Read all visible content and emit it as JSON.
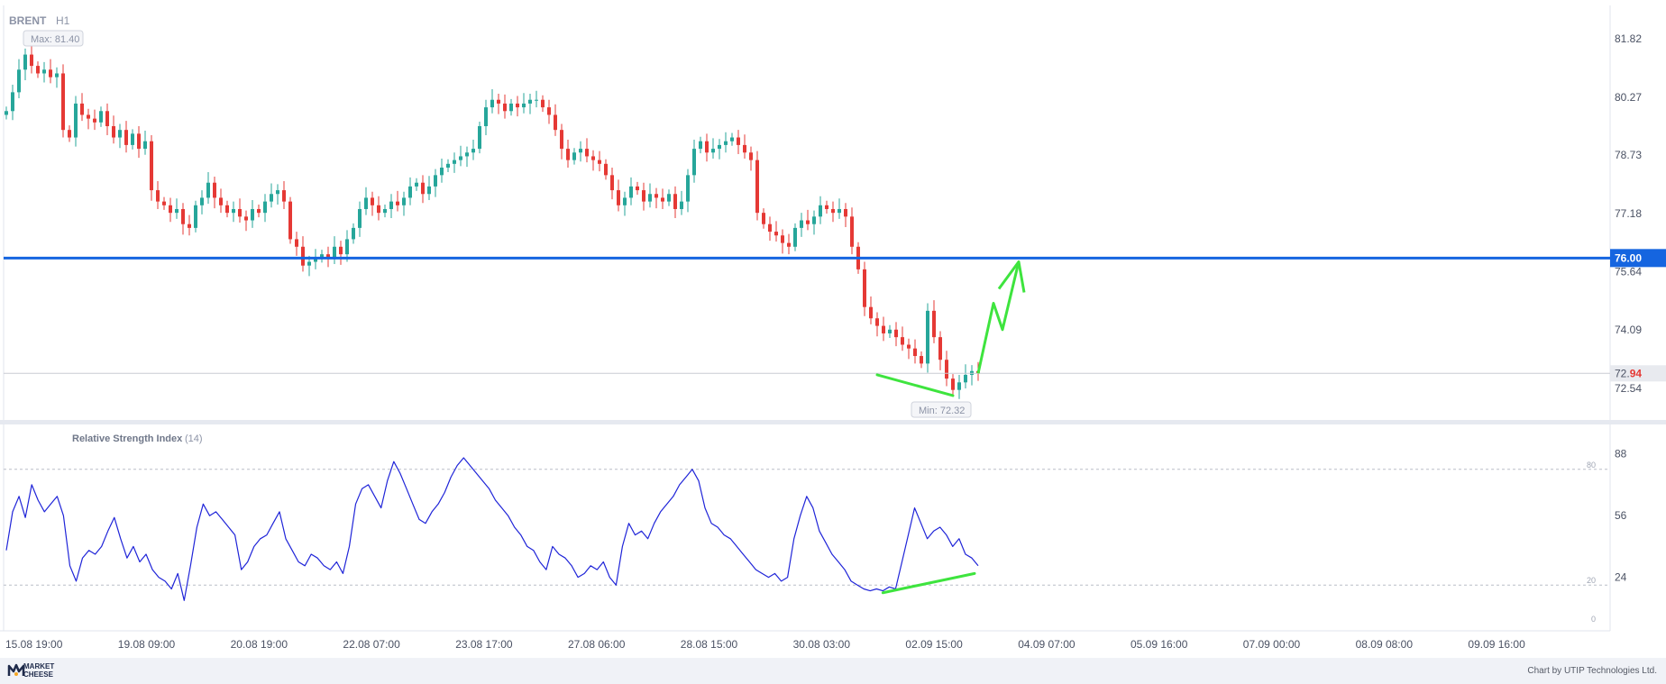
{
  "header": {
    "symbol": "BRENT",
    "timeframe": "H1"
  },
  "badges": {
    "max": "Max: 81.40",
    "min": "Min: 72.32"
  },
  "rsi": {
    "title": "Relative Strength Index",
    "period": "(14)"
  },
  "footer": {
    "brand_line1": "MARKET",
    "brand_line2": "CHEESE",
    "credit": "Chart by UTIP Technologies Ltd."
  },
  "colors": {
    "up": "#26a69a",
    "down": "#e53935",
    "level": "#1565e0",
    "rsi": "#1f24d8",
    "arrow": "#3ee43e"
  },
  "chart_data": [
    {
      "type": "candlestick",
      "title": "BRENT H1",
      "y_ticks": [
        "81.82",
        "80.27",
        "78.73",
        "77.18",
        "75.64",
        "74.09",
        "72.54"
      ],
      "ylim": [
        71.8,
        82.6
      ],
      "x_ticks": [
        "15.08 19:00",
        "19.08 09:00",
        "20.08 19:00",
        "22.08 07:00",
        "23.08 17:00",
        "27.08 06:00",
        "28.08 15:00",
        "30.08 03:00",
        "02.09 15:00",
        "04.09 07:00",
        "05.09 16:00",
        "07.09 00:00",
        "08.09 08:00",
        "09.09 16:00"
      ],
      "horizontal_level": {
        "value": 76.0,
        "label": "76.00"
      },
      "last_price": {
        "value": 72.94,
        "label_main": "72.",
        "label_tail": "94"
      },
      "max": 81.4,
      "min": 72.32,
      "close_path": [
        79.9,
        80.4,
        81.0,
        81.4,
        81.1,
        80.9,
        81.0,
        80.8,
        80.9,
        79.4,
        79.2,
        80.1,
        79.8,
        79.7,
        79.6,
        79.9,
        79.5,
        79.2,
        79.4,
        79.0,
        79.3,
        78.9,
        79.1,
        77.8,
        77.5,
        77.4,
        77.2,
        77.3,
        76.9,
        76.8,
        77.4,
        77.6,
        78.0,
        77.6,
        77.4,
        77.2,
        77.3,
        77.1,
        77.0,
        77.3,
        77.2,
        77.5,
        77.7,
        77.8,
        77.5,
        76.5,
        76.3,
        75.8,
        75.9,
        76.0,
        76.1,
        76.0,
        76.3,
        76.1,
        76.5,
        76.8,
        77.3,
        77.6,
        77.4,
        77.2,
        77.3,
        77.5,
        77.4,
        77.6,
        77.9,
        78.0,
        77.7,
        77.9,
        78.2,
        78.4,
        78.5,
        78.6,
        78.7,
        78.8,
        78.9,
        79.5,
        80.0,
        80.2,
        80.1,
        79.9,
        80.1,
        80.0,
        80.1,
        80.2,
        80.2,
        80.0,
        79.8,
        79.4,
        78.9,
        78.6,
        78.8,
        78.9,
        78.7,
        78.6,
        78.5,
        78.2,
        77.8,
        77.4,
        77.6,
        77.9,
        77.8,
        77.5,
        77.7,
        77.6,
        77.5,
        77.7,
        77.3,
        77.5,
        78.2,
        78.9,
        79.1,
        78.8,
        78.9,
        79.0,
        79.1,
        79.2,
        79.0,
        78.8,
        78.6,
        77.2,
        76.9,
        76.7,
        76.6,
        76.4,
        76.3,
        76.8,
        77.0,
        76.9,
        77.1,
        77.4,
        77.3,
        77.2,
        77.3,
        77.1,
        76.3,
        75.7,
        74.7,
        74.4,
        74.2,
        74.0,
        74.1,
        73.9,
        73.7,
        73.6,
        73.4,
        73.2,
        74.6,
        73.9,
        73.3,
        72.8,
        72.5,
        72.7,
        72.9,
        73.0,
        72.94
      ],
      "arrow_forecast": [
        72.94,
        74.8,
        74.1,
        75.9
      ]
    },
    {
      "type": "line",
      "title": "Relative Strength Index (14)",
      "series": [
        {
          "name": "RSI",
          "values": [
            38,
            58,
            66,
            55,
            72,
            64,
            58,
            62,
            66,
            56,
            30,
            22,
            34,
            38,
            36,
            40,
            48,
            55,
            44,
            34,
            40,
            32,
            36,
            28,
            24,
            22,
            18,
            26,
            12,
            30,
            50,
            62,
            56,
            58,
            54,
            50,
            46,
            28,
            32,
            40,
            44,
            46,
            52,
            58,
            44,
            38,
            32,
            30,
            36,
            34,
            30,
            28,
            32,
            26,
            40,
            62,
            70,
            72,
            66,
            60,
            74,
            84,
            78,
            70,
            62,
            54,
            52,
            58,
            62,
            68,
            76,
            82,
            86,
            82,
            78,
            74,
            70,
            64,
            60,
            56,
            50,
            46,
            40,
            38,
            32,
            28,
            40,
            36,
            34,
            30,
            24,
            26,
            30,
            28,
            32,
            24,
            20,
            40,
            52,
            46,
            48,
            44,
            52,
            58,
            62,
            66,
            72,
            76,
            80,
            74,
            60,
            52,
            50,
            46,
            44,
            40,
            36,
            32,
            28,
            26,
            24,
            26,
            22,
            24,
            44,
            56,
            66,
            60,
            48,
            42,
            36,
            32,
            28,
            22,
            20,
            18,
            17,
            18,
            17,
            19,
            18,
            32,
            46,
            60,
            52,
            44,
            48,
            50,
            46,
            40,
            44,
            36,
            34,
            30
          ]
        }
      ],
      "ylim": [
        0,
        100
      ],
      "y_ticks": [
        "88",
        "56",
        "24"
      ],
      "level_lines": [
        80,
        20
      ],
      "level_labels": [
        "80",
        "20",
        "0"
      ],
      "divergence_line": [
        16,
        26
      ]
    }
  ]
}
